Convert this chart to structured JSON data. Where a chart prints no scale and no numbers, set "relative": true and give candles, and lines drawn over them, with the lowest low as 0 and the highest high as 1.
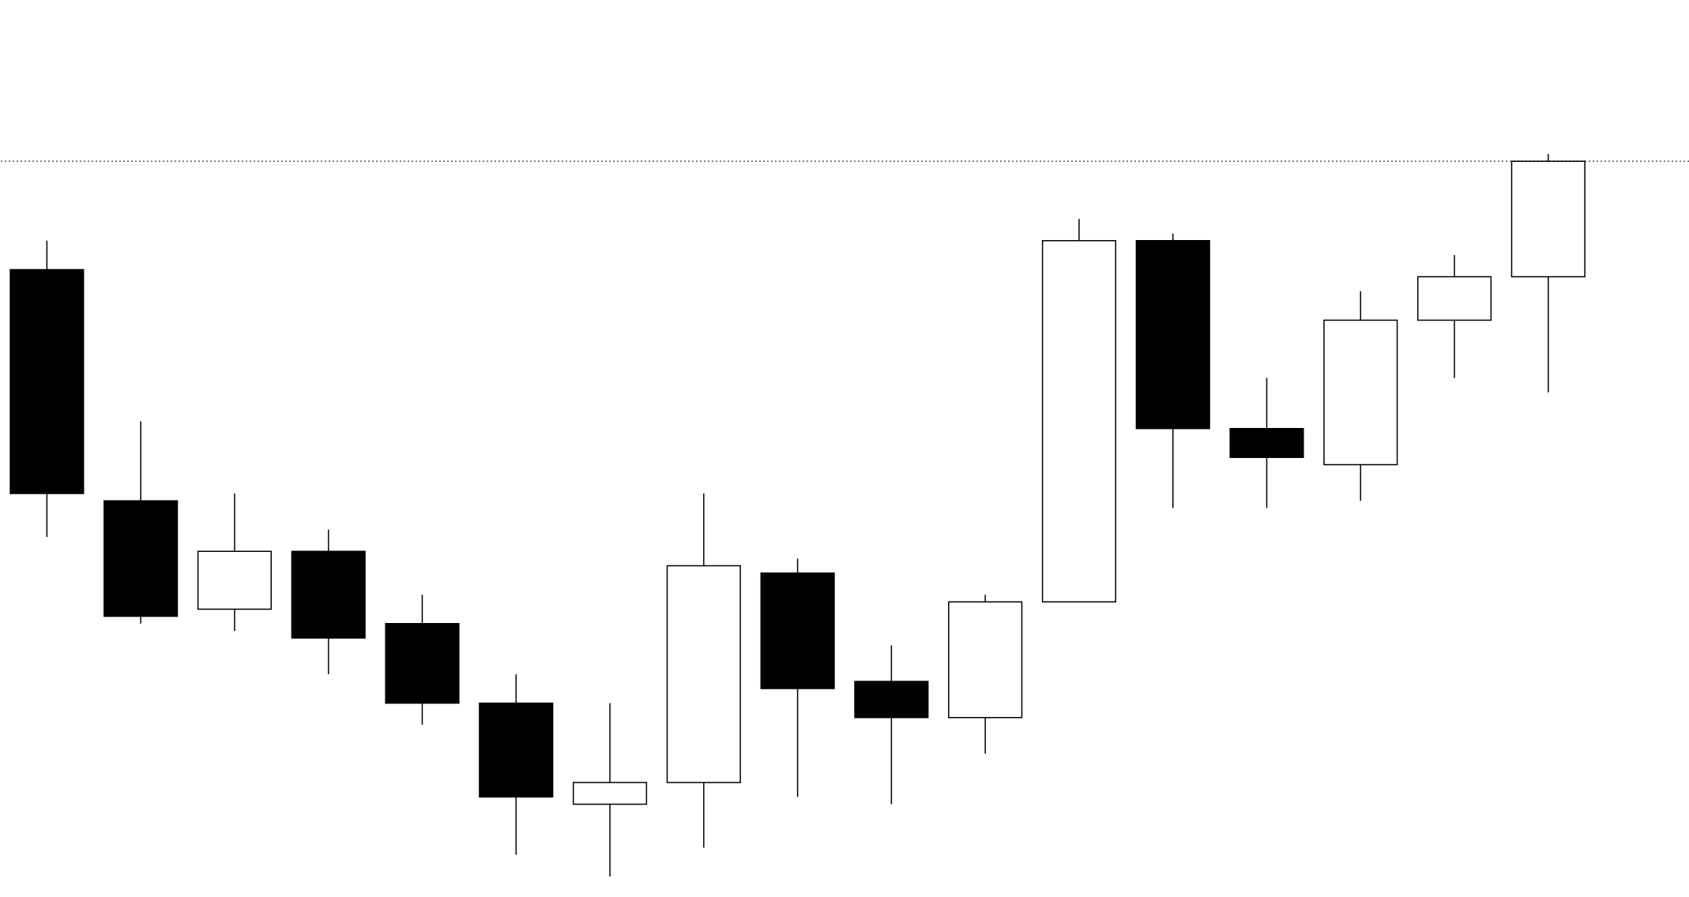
{
  "chart_data": {
    "type": "candlestick",
    "relative": true,
    "categories": [
      null,
      null,
      null,
      null,
      null,
      null,
      null,
      null,
      null,
      null,
      null,
      null,
      null,
      null,
      null,
      null,
      null
    ],
    "ohlc": [
      [
        0.84,
        0.88,
        0.47,
        0.53
      ],
      [
        0.52,
        0.63,
        0.35,
        0.36
      ],
      [
        0.37,
        0.53,
        0.34,
        0.45
      ],
      [
        0.45,
        0.48,
        0.28,
        0.33
      ],
      [
        0.35,
        0.39,
        0.21,
        0.24
      ],
      [
        0.24,
        0.28,
        0.03,
        0.11
      ],
      [
        0.1,
        0.24,
        0,
        0.13
      ],
      [
        0.13,
        0.53,
        0.04,
        0.43
      ],
      [
        0.42,
        0.44,
        0.11,
        0.26
      ],
      [
        0.27,
        0.32,
        0.1,
        0.22
      ],
      [
        0.22,
        0.39,
        0.17,
        0.38
      ],
      [
        0.38,
        0.91,
        0.38,
        0.88
      ],
      [
        0.88,
        0.89,
        0.51,
        0.62
      ],
      [
        0.62,
        0.69,
        0.51,
        0.58
      ],
      [
        0.57,
        0.81,
        0.52,
        0.77
      ],
      [
        0.77,
        0.86,
        0.69,
        0.83
      ],
      [
        0.83,
        1,
        0.67,
        0.99
      ]
    ],
    "ref_lines": [
      {
        "axis": "y",
        "value": 0.99,
        "line_style": "dotted",
        "color": "#000000"
      }
    ]
  }
}
